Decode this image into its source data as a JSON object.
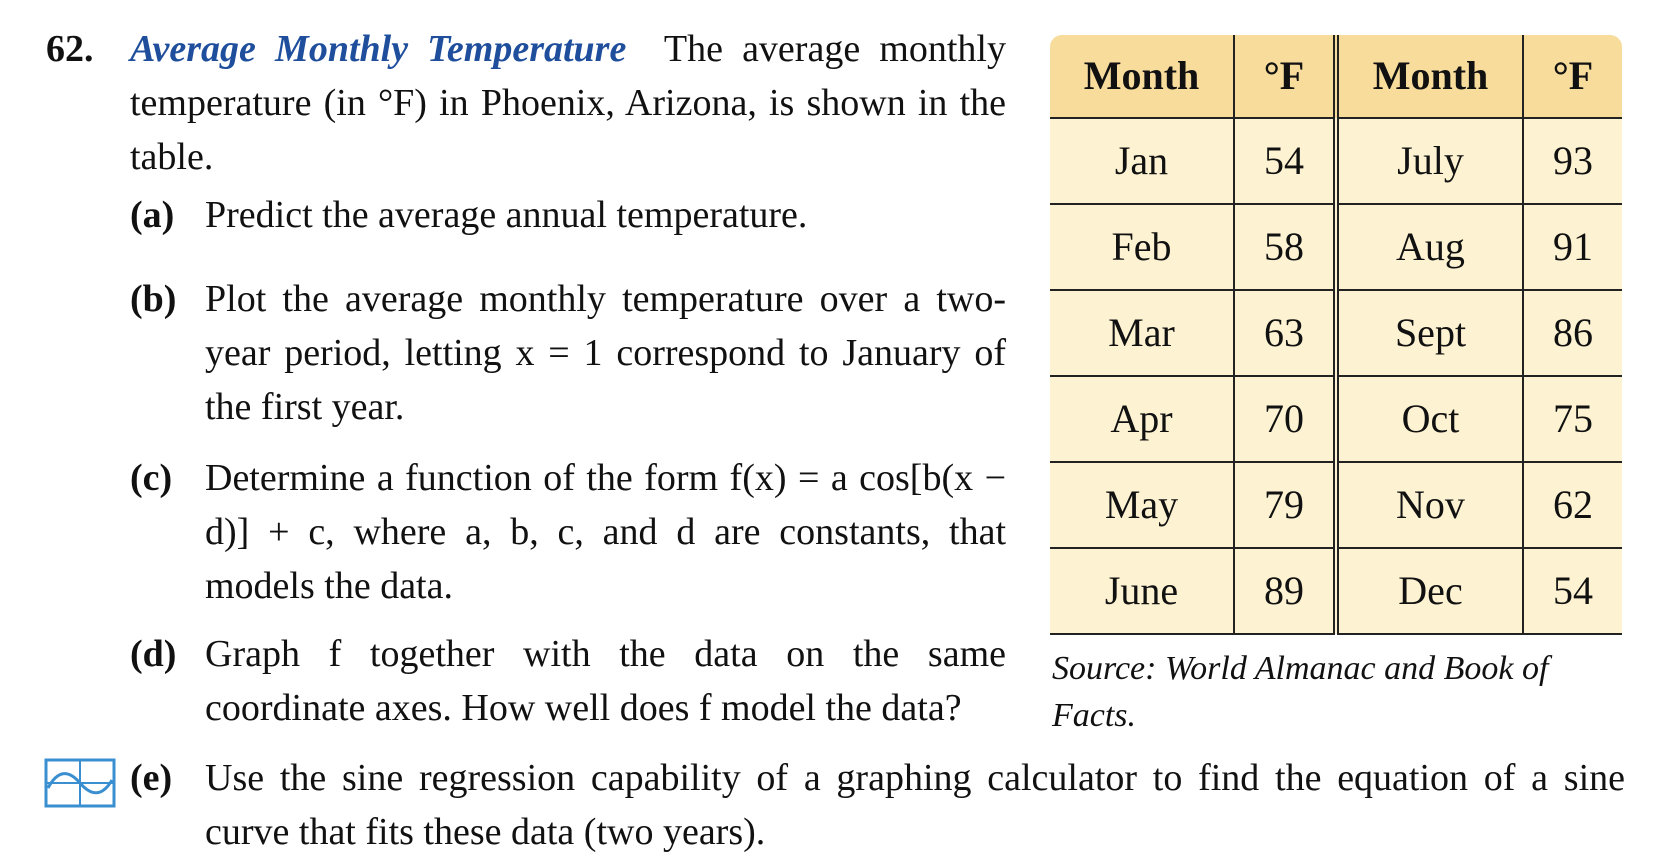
{
  "problem": {
    "number": "62.",
    "title": "Average Monthly Temperature",
    "intro": "The average monthly temperature (in °F) in Phoenix, Arizona, is shown in the table."
  },
  "parts": [
    {
      "label": "(a)",
      "text": "Predict the average annual temperature."
    },
    {
      "label": "(b)",
      "text": "Plot the average monthly temperature over a two-year period, letting x = 1 correspond to January of the first year."
    },
    {
      "label": "(c)",
      "text": "Determine a function of the form f(x) = a cos[b(x − d)] + c, where a, b, c, and d are constants, that models the data."
    },
    {
      "label": "(d)",
      "text": "Graph f together with the data on the same coordinate axes. How well does f model the data?"
    },
    {
      "label": "(e)",
      "text": "Use the sine regression capability of a graphing calculator to find the equation of a sine curve that fits these data (two years)."
    }
  ],
  "table": {
    "header": [
      "Month",
      "°F",
      "Month",
      "°F"
    ],
    "rows": [
      [
        "Jan",
        54,
        "July",
        93
      ],
      [
        "Feb",
        58,
        "Aug",
        91
      ],
      [
        "Mar",
        63,
        "Sept",
        86
      ],
      [
        "Apr",
        70,
        "Oct",
        75
      ],
      [
        "May",
        79,
        "Nov",
        62
      ],
      [
        "June",
        89,
        "Dec",
        54
      ]
    ]
  },
  "source": "Source: World Almanac and Book of Facts."
}
